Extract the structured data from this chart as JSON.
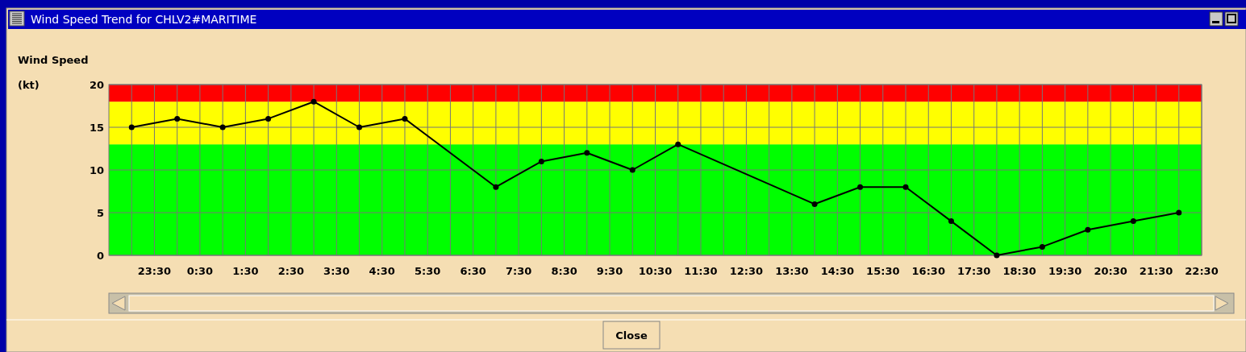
{
  "chart_data": {
    "type": "line",
    "title": "Wind Speed Trend for CHLV2#MARITIME",
    "ylabel": "Wind Speed (kt)",
    "categories": [
      null,
      "23:30",
      null,
      "0:30",
      null,
      "1:30",
      null,
      "2:30",
      null,
      "3:30",
      null,
      "4:30",
      null,
      "5:30",
      null,
      "6:30",
      null,
      "7:30",
      null,
      "8:30",
      null,
      "9:30",
      null,
      "10:30",
      null,
      "11:30",
      null,
      "12:30",
      null,
      "13:30",
      null,
      "14:30",
      null,
      "15:30",
      null,
      "16:30",
      null,
      "17:30",
      null,
      "18:30",
      null,
      "19:30",
      null,
      "20:30",
      null,
      "21:30",
      null,
      "22:30"
    ],
    "series": [
      {
        "color": "#000000",
        "values": [
          15,
          null,
          16,
          null,
          15,
          null,
          16,
          null,
          18,
          null,
          15,
          null,
          16,
          null,
          null,
          null,
          8,
          null,
          11,
          null,
          12,
          null,
          10,
          null,
          13,
          null,
          null,
          null,
          null,
          null,
          6,
          null,
          8,
          null,
          8,
          null,
          4,
          null,
          0,
          null,
          1,
          null,
          3,
          null,
          4,
          null,
          5,
          null
        ]
      }
    ],
    "ylim": [
      0,
      20
    ],
    "yticks": [
      0,
      5,
      10,
      15,
      20
    ],
    "bands": [
      {
        "axis": "y",
        "from": 0,
        "to": 13,
        "color": "#00ff00"
      },
      {
        "axis": "y",
        "from": 13,
        "to": 18,
        "color": "#ffff00"
      },
      {
        "axis": "y",
        "from": 18,
        "to": 20,
        "color": "#ff0000"
      }
    ],
    "grid": true,
    "marker": "circle",
    "line_style": "solid",
    "annotations": [
      "Close"
    ]
  }
}
